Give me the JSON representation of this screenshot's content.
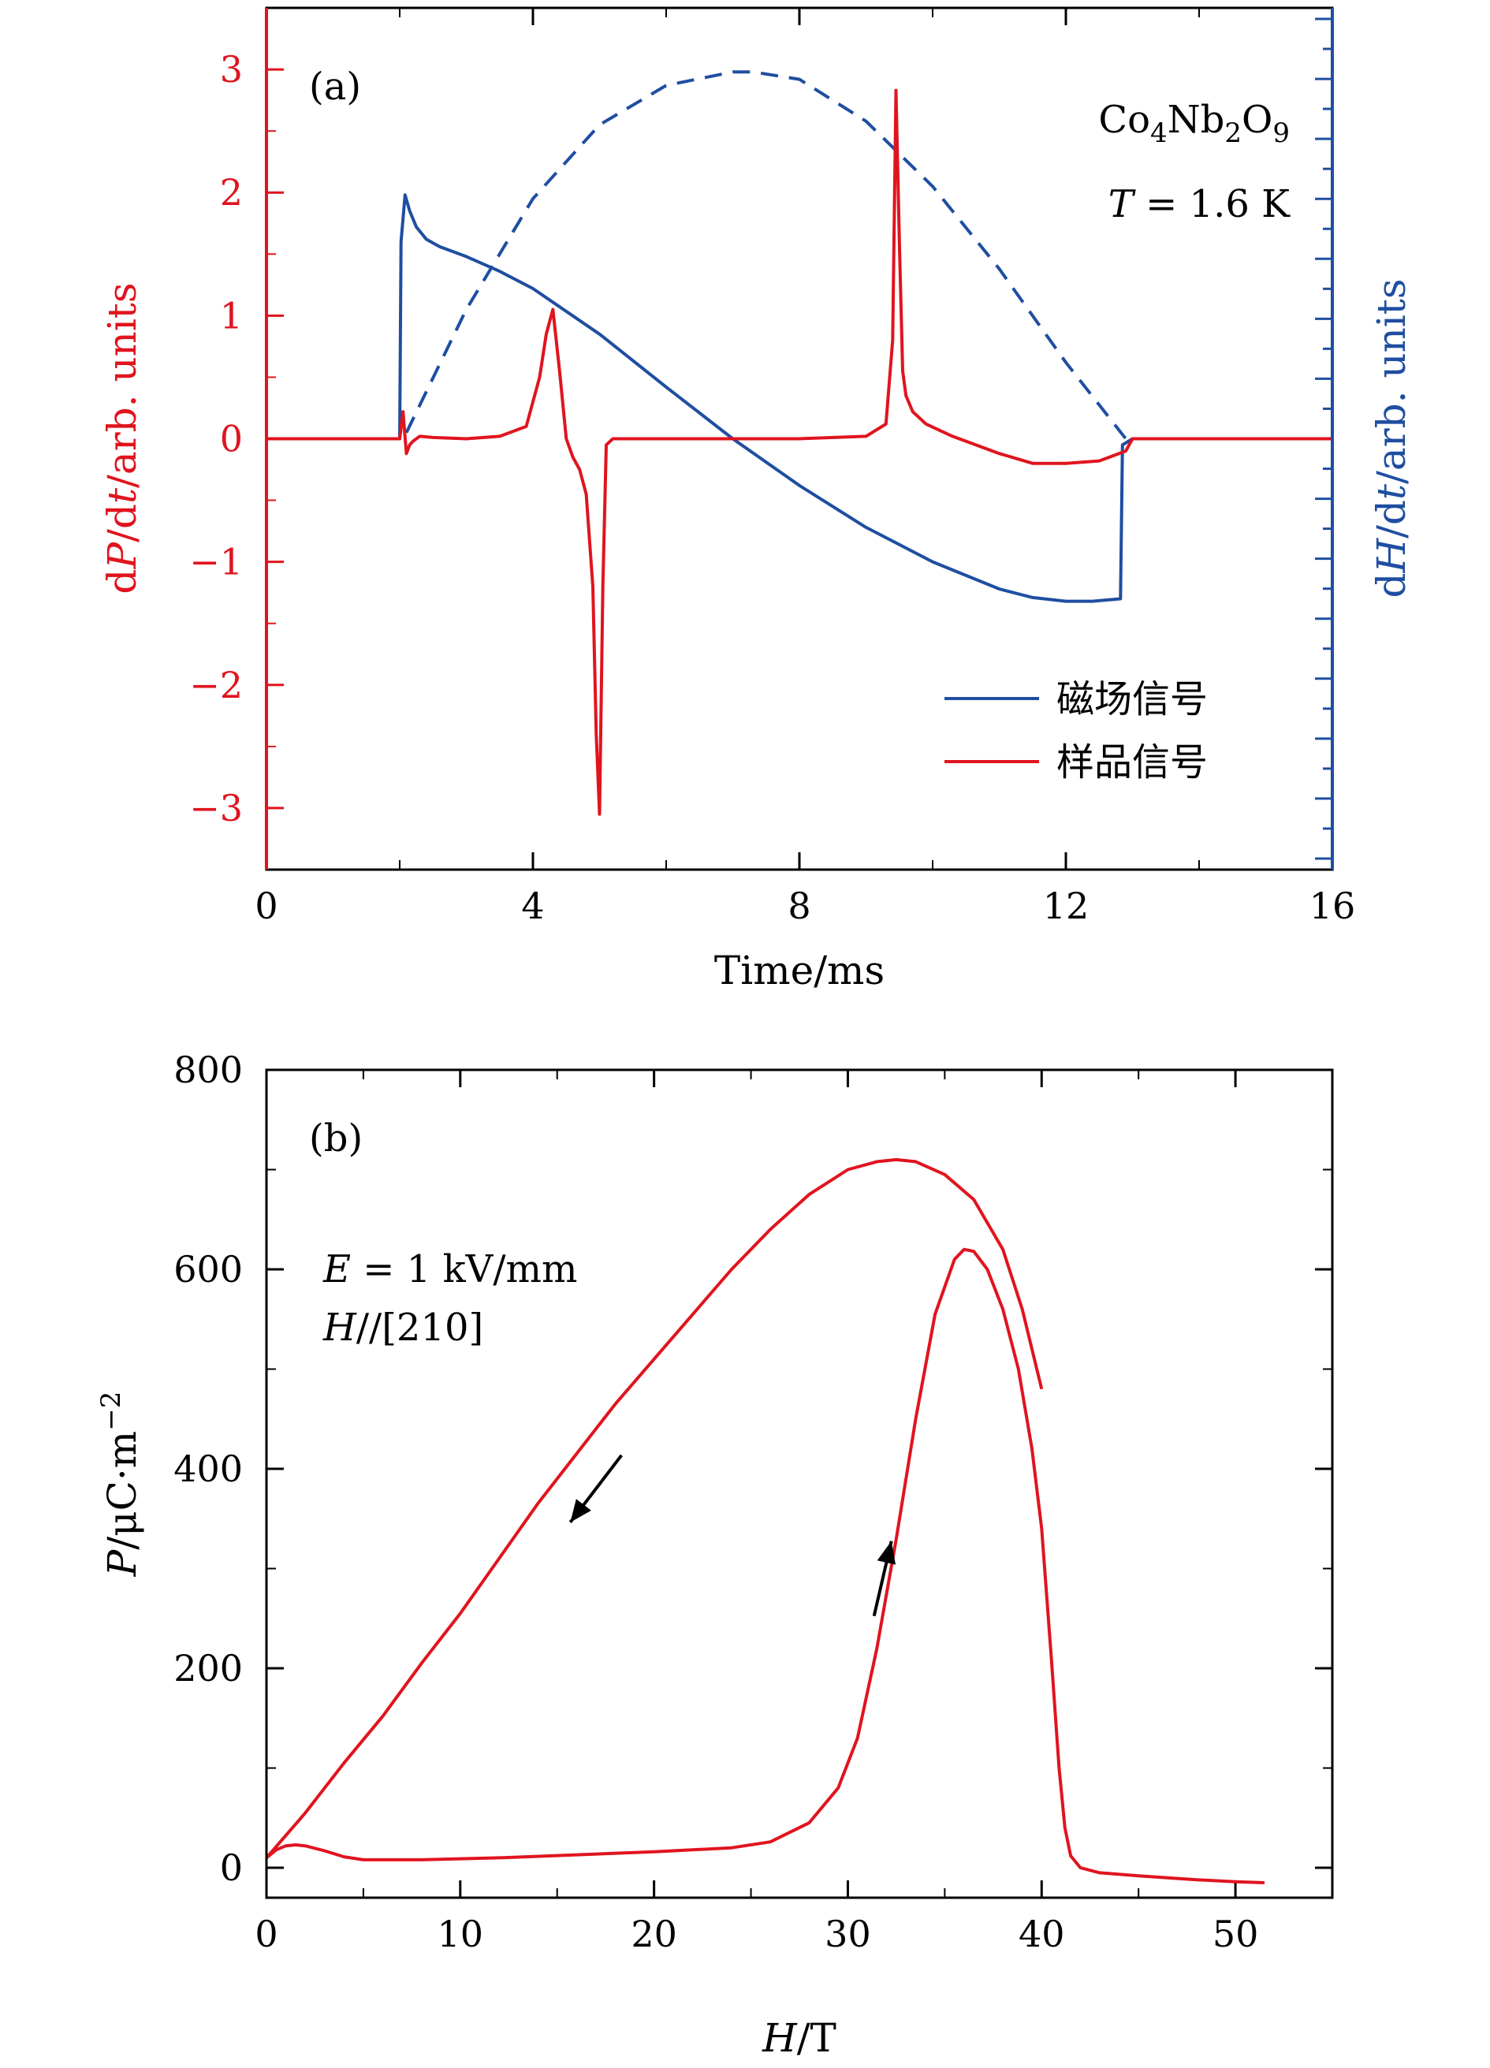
{
  "chart_data": [
    {
      "panel": "(a)",
      "type": "line",
      "xlabel": "Time/ms",
      "ylabel_left": "dP/dt/arb. units",
      "ylabel_right": "dH/dt/arb. units",
      "xlim": [
        0,
        16
      ],
      "ylim": [
        -3.5,
        3.5
      ],
      "x_ticks": [
        0,
        4,
        8,
        12,
        16
      ],
      "y_ticks": [
        -3,
        -2,
        -1,
        0,
        1,
        2,
        3
      ],
      "annotations": [
        "Co4Nb2O9",
        "T = 1.6 K"
      ],
      "legend_position": "bottom-right",
      "colors": {
        "left_axis": "#e0141e",
        "right_axis": "#1f4ea1",
        "sample": "#e0141e",
        "field": "#1f4ea1"
      },
      "series": [
        {
          "name": "磁场信号",
          "style": "solid",
          "color": "#1f4ea1",
          "x": [
            0,
            2.0,
            2.02,
            2.08,
            2.15,
            2.25,
            2.4,
            2.6,
            3.0,
            3.5,
            4.0,
            5.0,
            6.0,
            7.0,
            8.0,
            9.0,
            10.0,
            11.0,
            11.5,
            12.0,
            12.4,
            12.82,
            12.85,
            13.0,
            16
          ],
          "y": [
            0,
            0,
            1.6,
            1.98,
            1.85,
            1.72,
            1.62,
            1.56,
            1.48,
            1.36,
            1.22,
            0.85,
            0.42,
            0.0,
            -0.38,
            -0.72,
            -1.0,
            -1.22,
            -1.29,
            -1.32,
            -1.32,
            -1.3,
            -0.05,
            0,
            0
          ]
        },
        {
          "name": "field (dashed)",
          "style": "dashed",
          "color": "#1f4ea1",
          "x": [
            2.1,
            3.0,
            4.0,
            5.0,
            6.0,
            7.0,
            7.3,
            8.0,
            9.0,
            10.0,
            11.0,
            12.0,
            12.9
          ],
          "y": [
            0.05,
            1.05,
            1.95,
            2.55,
            2.87,
            2.98,
            2.98,
            2.92,
            2.58,
            2.05,
            1.38,
            0.62,
            0.0
          ]
        },
        {
          "name": "样品信号",
          "style": "solid",
          "color": "#e0141e",
          "x": [
            0,
            2.0,
            2.05,
            2.1,
            2.15,
            2.2,
            2.3,
            2.5,
            3.0,
            3.5,
            3.9,
            4.1,
            4.2,
            4.3,
            4.4,
            4.5,
            4.6,
            4.7,
            4.8,
            4.9,
            4.95,
            5.0,
            5.05,
            5.1,
            5.2,
            6.0,
            7.0,
            8.0,
            9.0,
            9.3,
            9.4,
            9.45,
            9.5,
            9.55,
            9.6,
            9.7,
            9.9,
            10.3,
            11.0,
            11.5,
            12.0,
            12.5,
            12.9,
            13.0,
            16
          ],
          "y": [
            0,
            0,
            0.22,
            -0.12,
            -0.05,
            -0.02,
            0.02,
            0.01,
            0.0,
            0.02,
            0.1,
            0.5,
            0.85,
            1.05,
            0.55,
            0.0,
            -0.15,
            -0.25,
            -0.45,
            -1.2,
            -2.4,
            -3.05,
            -1.2,
            -0.05,
            0.0,
            0.0,
            0.0,
            0.0,
            0.02,
            0.12,
            0.8,
            2.83,
            1.6,
            0.55,
            0.35,
            0.22,
            0.12,
            0.02,
            -0.12,
            -0.2,
            -0.2,
            -0.18,
            -0.1,
            0.0,
            0
          ]
        }
      ]
    },
    {
      "panel": "(b)",
      "type": "line",
      "xlabel": "H/T",
      "ylabel": "P/μC·m⁻²",
      "xlim": [
        0,
        55
      ],
      "ylim": [
        -30,
        800
      ],
      "x_ticks": [
        0,
        10,
        20,
        30,
        40,
        50
      ],
      "y_ticks": [
        0,
        200,
        400,
        600,
        800
      ],
      "annotations": [
        "E = 1 kV/mm",
        "H//[210]"
      ],
      "color": "#e0141e",
      "series": [
        {
          "name": "up sweep",
          "x": [
            0,
            0.5,
            1.0,
            1.5,
            2.0,
            3.0,
            4.0,
            5.0,
            8.0,
            12.0,
            16.0,
            20.0,
            24.0,
            26.0,
            28.0,
            29.5,
            30.5,
            31.5,
            32.5,
            33.5,
            34.5,
            35.5,
            36.0,
            36.5,
            37.2,
            38.0,
            38.8,
            39.5,
            40.0,
            40.5,
            40.9,
            41.2,
            41.5,
            42.0,
            43.0,
            45.0,
            48.0,
            50.0,
            51.5
          ],
          "y": [
            10,
            18,
            22,
            23,
            22,
            17,
            11,
            8,
            8,
            10,
            13,
            16,
            20,
            26,
            45,
            80,
            130,
            220,
            330,
            450,
            555,
            610,
            620,
            618,
            600,
            560,
            500,
            420,
            340,
            210,
            100,
            40,
            12,
            0,
            -5,
            -8,
            -12,
            -14,
            -15
          ]
        },
        {
          "name": "down sweep",
          "x": [
            0,
            2.0,
            4.0,
            6.0,
            8.0,
            10.0,
            12.0,
            14.0,
            16.0,
            18.0,
            20.0,
            22.0,
            24.0,
            26.0,
            28.0,
            30.0,
            31.5,
            32.5,
            33.5,
            35.0,
            36.5,
            38.0,
            39.0,
            40.0
          ],
          "y": [
            10,
            55,
            105,
            152,
            205,
            255,
            310,
            365,
            415,
            465,
            510,
            555,
            600,
            640,
            675,
            700,
            708,
            710,
            708,
            695,
            670,
            620,
            560,
            480
          ]
        }
      ],
      "arrows": [
        {
          "direction": "down-left",
          "at_x": 17.0,
          "at_y": 380
        },
        {
          "direction": "up",
          "at_x": 31.8,
          "at_y": 290
        }
      ]
    }
  ],
  "legend": [
    {
      "label": "磁场信号",
      "color": "#1f4ea1"
    },
    {
      "label": "样品信号",
      "color": "#e0141e"
    }
  ]
}
